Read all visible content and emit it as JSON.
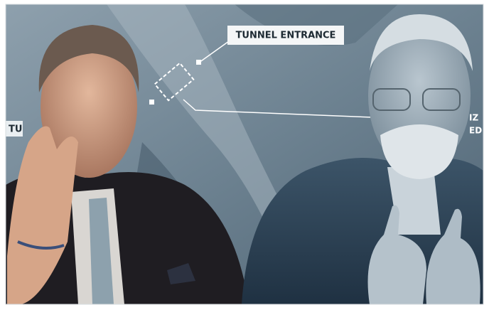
{
  "labels": {
    "main": "TUNNEL ENTRANCE",
    "left_fragment": "TU",
    "right_fragment_1": "IZ",
    "right_fragment_2": "ED"
  }
}
